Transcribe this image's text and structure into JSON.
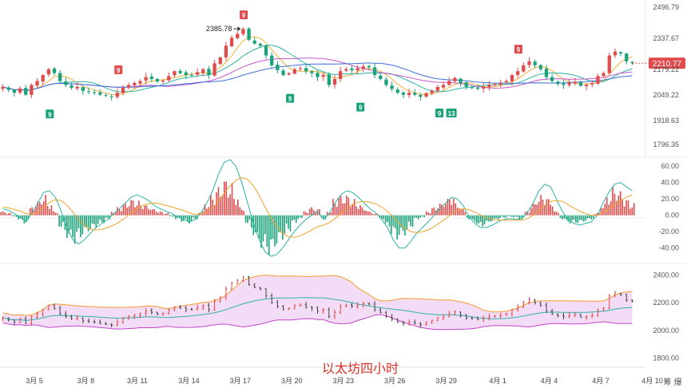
{
  "title": "以太坊四小时",
  "brand": "筹 爆",
  "colors": {
    "up": "#e04b4b",
    "down": "#1aa27a",
    "badge_red": "#e04b4b",
    "badge_green": "#1aa27a",
    "price_tag": "#e04b4b",
    "boll_fill": "#f1d6f5",
    "boll_upper": "#f59a2c",
    "boll_lower": "#c245c9",
    "boll_mid": "#2fb3a9",
    "ma1": "#f2b134",
    "ma2": "#2bb3a5",
    "ma3": "#c557c9",
    "ma4": "#3f6fd8",
    "macd_dif": "#2bb3a5",
    "macd_dea": "#f2a32c"
  },
  "chart_data": [
    {
      "type": "candlestick",
      "panel": "price",
      "y_ticks": [
        "2496.79",
        "2337.67",
        "2179.22",
        "2049.22",
        "1918.63",
        "1796.35"
      ],
      "ylim": [
        1760,
        2500
      ],
      "last_price_label": "2210.77",
      "last_price": 2210.77,
      "high_annotation": "2385.78",
      "high_value": 2385.78,
      "x_ticks": [
        "3月 5",
        "3月 8",
        "3月 11",
        "3月 14",
        "3月 17",
        "3月 20",
        "3月 23",
        "3月 26",
        "3月 29",
        "4月 1",
        "4月 4",
        "4月 7",
        "4月 10"
      ],
      "x_ticks_days": [
        5,
        8,
        11,
        14,
        17,
        20,
        23,
        26,
        29,
        32,
        35,
        38,
        41
      ],
      "x_range_days": [
        3.0,
        40.0
      ],
      "close_series": [
        2090,
        2075,
        2060,
        2082,
        2050,
        2100,
        2120,
        2150,
        2180,
        2160,
        2120,
        2100,
        2085,
        2090,
        2070,
        2065,
        2060,
        2050,
        2045,
        2038,
        2060,
        2085,
        2100,
        2110,
        2120,
        2140,
        2130,
        2118,
        2122,
        2145,
        2170,
        2160,
        2150,
        2150,
        2165,
        2180,
        2150,
        2210,
        2240,
        2300,
        2340,
        2360,
        2385,
        2330,
        2310,
        2300,
        2250,
        2200,
        2175,
        2150,
        2160,
        2180,
        2185,
        2170,
        2160,
        2140,
        2150,
        2100,
        2130,
        2170,
        2180,
        2175,
        2185,
        2195,
        2190,
        2150,
        2130,
        2100,
        2080,
        2060,
        2050,
        2060,
        2050,
        2040,
        2058,
        2070,
        2090,
        2100,
        2120,
        2135,
        2110,
        2090,
        2085,
        2080,
        2090,
        2100,
        2105,
        2110,
        2120,
        2150,
        2170,
        2200,
        2220,
        2200,
        2180,
        2140,
        2120,
        2105,
        2100,
        2110,
        2115,
        2095,
        2100,
        2110,
        2145,
        2160,
        2250,
        2270,
        2260,
        2220,
        2211
      ],
      "td_markers": [
        {
          "label": "9",
          "color": "red",
          "day": 9.9,
          "value": 2175
        },
        {
          "label": "9",
          "color": "green",
          "day": 5.9,
          "value": 1950
        },
        {
          "label": "9",
          "color": "red",
          "day": 17.2,
          "value": 2455
        },
        {
          "label": "9",
          "color": "green",
          "day": 19.9,
          "value": 2030
        },
        {
          "label": "9",
          "color": "green",
          "day": 24.0,
          "value": 1985
        },
        {
          "label": "9",
          "color": "green",
          "day": 28.6,
          "value": 1955
        },
        {
          "label": "13",
          "color": "green",
          "day": 29.3,
          "value": 1955
        },
        {
          "label": "9",
          "color": "red",
          "day": 33.2,
          "value": 2280
        }
      ]
    },
    {
      "type": "macd",
      "panel": "macd",
      "y_ticks": [
        "60.00",
        "40.00",
        "20.00",
        "0.00",
        "-20.00",
        "-40.00"
      ],
      "ylim": [
        -55,
        68
      ],
      "histogram": [
        5,
        3,
        -2,
        -6,
        -10,
        10,
        18,
        25,
        15,
        5,
        -15,
        -28,
        -35,
        -30,
        -25,
        -20,
        -15,
        -10,
        -5,
        5,
        10,
        15,
        20,
        18,
        15,
        12,
        8,
        5,
        3,
        -2,
        -5,
        -8,
        -10,
        -5,
        5,
        15,
        25,
        35,
        45,
        40,
        25,
        10,
        -10,
        -25,
        -40,
        -45,
        -50,
        -40,
        -30,
        -20,
        -10,
        -5,
        5,
        10,
        8,
        -5,
        5,
        20,
        25,
        25,
        20,
        15,
        10,
        5,
        2,
        -5,
        -15,
        -25,
        -30,
        -25,
        -15,
        -5,
        -3,
        5,
        10,
        15,
        20,
        25,
        15,
        8,
        -5,
        -10,
        -15,
        -12,
        -8,
        -5,
        -3,
        -2,
        -3,
        -5,
        5,
        15,
        25,
        25,
        20,
        5,
        -5,
        -10,
        -10,
        -10,
        -8,
        -5,
        3,
        15,
        25,
        35,
        30,
        20,
        15
      ],
      "dif": [
        8,
        6,
        2,
        -3,
        -8,
        3,
        15,
        28,
        30,
        22,
        5,
        -15,
        -30,
        -35,
        -30,
        -22,
        -15,
        -10,
        -5,
        2,
        8,
        15,
        22,
        25,
        22,
        18,
        12,
        8,
        5,
        2,
        -2,
        -5,
        -8,
        -5,
        3,
        15,
        30,
        50,
        65,
        68,
        60,
        40,
        15,
        -10,
        -30,
        -45,
        -50,
        -48,
        -40,
        -30,
        -20,
        -12,
        -5,
        0,
        5,
        -5,
        2,
        15,
        25,
        30,
        28,
        22,
        15,
        8,
        3,
        -5,
        -15,
        -30,
        -40,
        -40,
        -32,
        -22,
        -15,
        -8,
        0,
        8,
        15,
        22,
        20,
        12,
        -2,
        -10,
        -15,
        -15,
        -12,
        -8,
        -5,
        -4,
        -5,
        -5,
        3,
        15,
        30,
        38,
        35,
        20,
        5,
        -5,
        -10,
        -12,
        -10,
        -8,
        0,
        15,
        28,
        38,
        40,
        35,
        30
      ],
      "dea": [
        10,
        9,
        7,
        5,
        2,
        1,
        4,
        10,
        16,
        19,
        18,
        12,
        4,
        -5,
        -12,
        -17,
        -18,
        -17,
        -15,
        -12,
        -8,
        -3,
        3,
        8,
        12,
        14,
        15,
        14,
        12,
        10,
        8,
        6,
        3,
        1,
        1,
        4,
        9,
        17,
        27,
        36,
        43,
        46,
        44,
        36,
        24,
        10,
        -3,
        -14,
        -22,
        -26,
        -27,
        -25,
        -22,
        -18,
        -14,
        -12,
        -9,
        -4,
        2,
        8,
        13,
        16,
        17,
        16,
        14,
        10,
        5,
        -2,
        -10,
        -16,
        -20,
        -21,
        -20,
        -18,
        -14,
        -9,
        -4,
        2,
        6,
        8,
        7,
        4,
        0,
        -3,
        -5,
        -6,
        -6,
        -6,
        -6,
        -6,
        -4,
        0,
        6,
        12,
        17,
        18,
        17,
        13,
        9,
        5,
        2,
        0,
        0,
        3,
        8,
        13,
        18,
        22,
        25
      ]
    },
    {
      "type": "bollinger",
      "panel": "boll",
      "y_ticks": [
        "2400.00",
        "2200.00",
        "2000.00",
        "1800.00"
      ],
      "ylim": [
        1780,
        2460
      ]
    }
  ]
}
